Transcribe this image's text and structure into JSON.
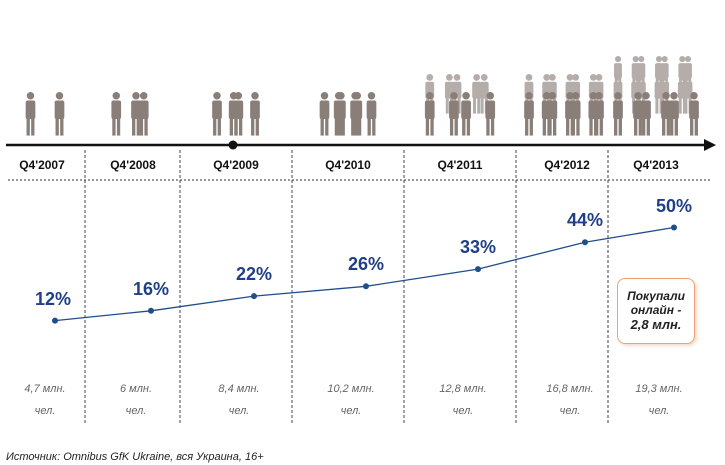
{
  "chart_data": {
    "type": "line",
    "categories": [
      "Q4'2007",
      "Q4'2008",
      "Q4'2009",
      "Q4'2010",
      "Q4'2011",
      "Q4'2012",
      "Q4'2013"
    ],
    "values": [
      12,
      16,
      22,
      26,
      33,
      44,
      50
    ],
    "value_labels": [
      "12%",
      "16%",
      "22%",
      "26%",
      "33%",
      "44%",
      "50%"
    ],
    "users_value": [
      "4,7 млн.",
      "6 млн.",
      "8,4 млн.",
      "10,2 млн.",
      "12,8 млн.",
      "16,8 млн.",
      "19,3 млн."
    ],
    "users_unit": "чел.",
    "figures_count": [
      2,
      3,
      4,
      6,
      9,
      14,
      20
    ],
    "line_color": "#1f4e8c",
    "figure_color": "#8a7e78",
    "grid": false
  },
  "callout": {
    "line1": "Покупали",
    "line2": "онлайн -",
    "value": "2,8 млн."
  },
  "source": "Источник: Omnibus GfK Ukraine, вся Украина, 16+"
}
